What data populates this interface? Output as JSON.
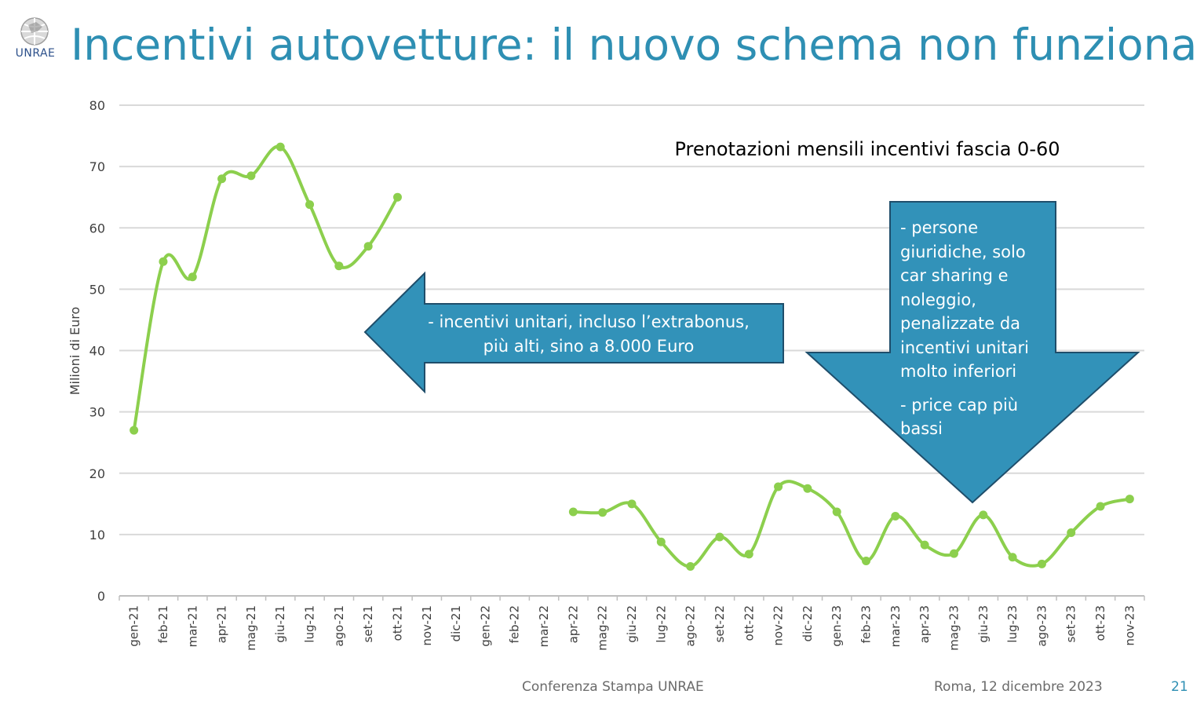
{
  "slide": {
    "title": "Incentivi autovetture: il nuovo schema non funziona",
    "logo_text": "UNRAE",
    "accent_color": "#2e8fb3",
    "footer_left": "Conferenza Stampa UNRAE",
    "footer_right": "Roma, 12 dicembre 2023",
    "page_number": "21"
  },
  "chart_data": {
    "type": "line",
    "title": "Prenotazioni mensili incentivi fascia 0-60",
    "xlabel": "",
    "ylabel": "Milioni di Euro",
    "ylim": [
      0,
      80
    ],
    "yticks": [
      0,
      10,
      20,
      30,
      40,
      50,
      60,
      70,
      80
    ],
    "grid": true,
    "line_color": "#8ccf4d",
    "categories": [
      "gen-21",
      "feb-21",
      "mar-21",
      "apr-21",
      "mag-21",
      "giu-21",
      "lug-21",
      "ago-21",
      "set-21",
      "ott-21",
      "nov-21",
      "dic-21",
      "gen-22",
      "feb-22",
      "mar-22",
      "apr-22",
      "mag-22",
      "giu-22",
      "lug-22",
      "ago-22",
      "set-22",
      "ott-22",
      "nov-22",
      "dic-22",
      "gen-23",
      "feb-23",
      "mar-23",
      "apr-23",
      "mag-23",
      "giu-23",
      "lug-23",
      "ago-23",
      "set-23",
      "ott-23",
      "nov-23"
    ],
    "series": [
      {
        "values": [
          27,
          54.5,
          52,
          68,
          68.5,
          73.2,
          63.8,
          53.8,
          57,
          65,
          null,
          null,
          null,
          null,
          null,
          13.7,
          13.6,
          15,
          8.8,
          4.8,
          9.6,
          6.8,
          17.8,
          17.5,
          13.7,
          5.7,
          13,
          8.3,
          6.9,
          13.2,
          6.3,
          5.2,
          10.3,
          14.6,
          15.8
        ]
      }
    ],
    "annotations": {
      "left_arrow": {
        "lines": [
          "- incentivi unitari, incluso l’extrabonus,",
          "più alti, sino a 8.000 Euro"
        ],
        "color": "#3292b9"
      },
      "down_arrow": {
        "lines": [
          "- persone",
          "giuridiche, solo",
          "car sharing e",
          "noleggio,",
          "penalizzate da",
          "incentivi unitari",
          "molto inferiori",
          "- price cap più",
          "bassi"
        ],
        "color": "#3292b9"
      }
    }
  }
}
